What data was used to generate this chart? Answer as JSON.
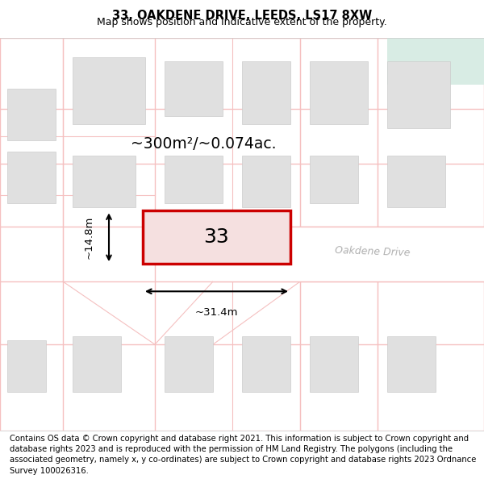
{
  "title_line1": "33, OAKDENE DRIVE, LEEDS, LS17 8XW",
  "title_line2": "Map shows position and indicative extent of the property.",
  "footer_text": "Contains OS data © Crown copyright and database right 2021. This information is subject to Crown copyright and database rights 2023 and is reproduced with the permission of HM Land Registry. The polygons (including the associated geometry, namely x, y co-ordinates) are subject to Crown copyright and database rights 2023 Ordnance Survey 100026316.",
  "map_bg": "#f7f7f7",
  "road_color": "#f5c0c0",
  "building_color": "#e0e0e0",
  "building_edge": "#cccccc",
  "green_area_color": "#d8ece4",
  "highlight_color": "#cc0000",
  "highlight_lw": 2.5,
  "label_33": "33",
  "area_label": "~300m²/~0.074ac.",
  "dim_width": "~31.4m",
  "dim_height": "~14.8m",
  "street_label": "Oakdene Drive"
}
